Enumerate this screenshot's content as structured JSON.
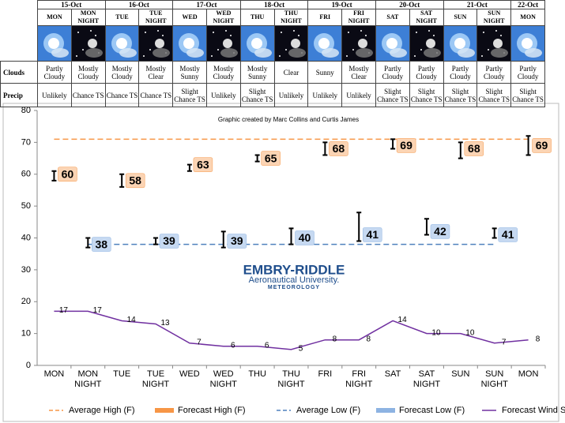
{
  "forecast_table": {
    "dates": [
      "15-Oct",
      "16-Oct",
      "17-Oct",
      "18-Oct",
      "19-Oct",
      "20-Oct",
      "21-Oct",
      "22-Oct"
    ],
    "periods": [
      "MON",
      "MON NIGHT",
      "TUE",
      "TUE NIGHT",
      "WED",
      "WED NIGHT",
      "THU",
      "THU NIGHT",
      "FRI",
      "FRI NIGHT",
      "SAT",
      "SAT NIGHT",
      "SUN",
      "SUN NIGHT",
      "MON"
    ],
    "row_labels": [
      "Clouds",
      "Precip"
    ],
    "clouds": [
      "Partly Cloudy",
      "Mostly Cloudy",
      "Mostly Cloudy",
      "Mostly Clear",
      "Mostly Sunny",
      "Mostly Cloudy",
      "Mostly Sunny",
      "Clear",
      "Sunny",
      "Mostly Clear",
      "Partly Cloudy",
      "Partly Cloudy",
      "Partly Cloudy",
      "Partly Cloudy",
      "Partly Cloudy"
    ],
    "precip": [
      "Unlikely",
      "Chance TS",
      "Chance TS",
      "Chance TS",
      "Slight Chance TS",
      "Unlikely",
      "Slight Chance TS",
      "Unlikely",
      "Unlikely",
      "Unlikely",
      "Slight Chance TS",
      "Slight Chance TS",
      "Slight Chance TS",
      "Slight Chance TS",
      "Slight Chance TS"
    ]
  },
  "chart_data": {
    "type": "line",
    "annotation": "Graphic created by Marc Collins and Curtis James",
    "logo": [
      "EMBRY-RIDDLE",
      "Aeronautical University.",
      "METEOROLOGY"
    ],
    "categories": [
      "MON",
      "MON NIGHT",
      "TUE",
      "TUE NIGHT",
      "WED",
      "WED NIGHT",
      "THU",
      "THU NIGHT",
      "FRI",
      "FRI NIGHT",
      "SAT",
      "SAT NIGHT",
      "SUN",
      "SUN NIGHT",
      "MON"
    ],
    "ylim": [
      0,
      80
    ],
    "yticks": [
      0,
      10,
      20,
      30,
      40,
      50,
      60,
      70,
      80
    ],
    "grid": false,
    "legend": "bottom",
    "series": [
      {
        "name": "Average High (F)",
        "kind": "average",
        "color": "#f79646",
        "values": [
          71,
          71,
          71,
          71,
          71,
          71,
          71,
          71,
          71,
          71,
          71,
          71,
          71,
          71,
          71
        ]
      },
      {
        "name": "Forecast High (F)",
        "kind": "forecast",
        "color": "#f79646",
        "box_color": "#fbd4b4",
        "values": [
          60,
          null,
          58,
          null,
          63,
          null,
          65,
          null,
          68,
          null,
          69,
          null,
          68,
          null,
          69
        ],
        "ranges": [
          [
            58,
            61
          ],
          null,
          [
            56,
            60
          ],
          null,
          [
            61,
            63
          ],
          null,
          [
            64,
            66
          ],
          null,
          [
            66,
            70
          ],
          null,
          [
            68,
            71
          ],
          null,
          [
            65,
            70
          ],
          null,
          [
            66,
            72
          ]
        ]
      },
      {
        "name": "Average Low (F)",
        "kind": "average",
        "color": "#4f81bd",
        "values": [
          null,
          38,
          38,
          38,
          38,
          38,
          38,
          38,
          38,
          38,
          38,
          38,
          38,
          38,
          null
        ]
      },
      {
        "name": "Forecast Low (F)",
        "kind": "forecast",
        "color": "#8db3e2",
        "box_color": "#c6d9f1",
        "values": [
          null,
          38,
          null,
          39,
          null,
          39,
          null,
          40,
          null,
          41,
          null,
          42,
          null,
          41,
          null
        ],
        "ranges": [
          null,
          [
            37,
            40
          ],
          null,
          [
            38,
            40
          ],
          null,
          [
            37,
            42
          ],
          null,
          [
            38,
            43
          ],
          null,
          [
            39,
            48
          ],
          null,
          [
            41,
            46
          ],
          null,
          [
            40,
            43
          ],
          null
        ]
      },
      {
        "name": "Forecast Wind Speed (mph)",
        "kind": "line",
        "color": "#7030a0",
        "values": [
          17,
          17,
          14,
          13,
          7,
          6,
          6,
          5,
          8,
          8,
          14,
          10,
          10,
          7,
          8
        ]
      }
    ]
  }
}
